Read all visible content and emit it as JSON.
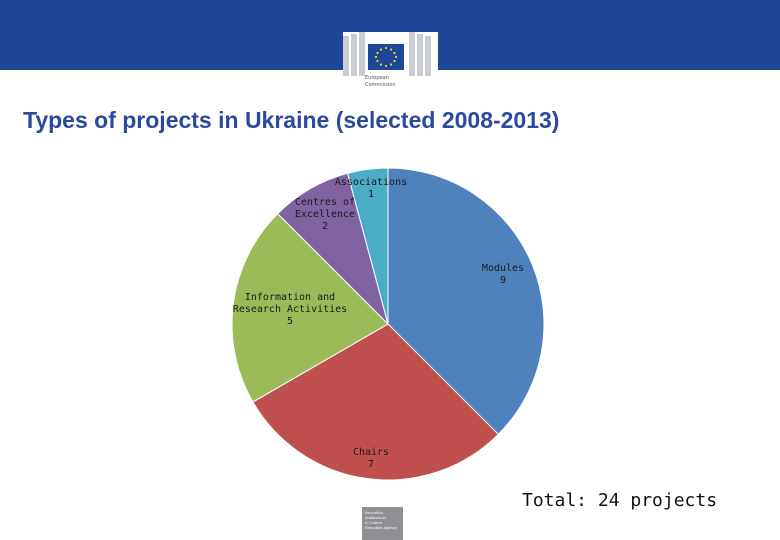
{
  "header": {
    "logo_text_line1": "European",
    "logo_text_line2": "Commission"
  },
  "slide_title": "Types of projects in Ukraine (selected 2008-2013)",
  "total_note": "Total: 24 projects",
  "footer_logo": {
    "text_lines": [
      "Education,",
      "Audiovisual",
      "& Culture",
      "Executive Agency"
    ]
  },
  "colors": {
    "header_band": "#1f4797",
    "title": "#2b4a9e",
    "Modules": "#4f81bd",
    "Chairs": "#c0504d",
    "Information and Research Activities": "#9bbb59",
    "Centres of Excellence": "#8064a2",
    "Associations": "#4bacc6"
  },
  "chart_data": {
    "type": "pie",
    "title": "",
    "start_angle": "12 o'clock",
    "direction": "clockwise",
    "slices": [
      {
        "name": "Modules",
        "value": 9,
        "label_lines": [
          "Modules",
          "9"
        ]
      },
      {
        "name": "Chairs",
        "value": 7,
        "label_lines": [
          "Chairs",
          "7"
        ]
      },
      {
        "name": "Information and Research Activities",
        "value": 5,
        "label_lines": [
          "Information and",
          "Research Activities",
          "5"
        ]
      },
      {
        "name": "Centres of Excellence",
        "value": 2,
        "label_lines": [
          "Centres of",
          "Excellence",
          "2"
        ]
      },
      {
        "name": "Associations",
        "value": 1,
        "label_lines": [
          "Associations",
          "1"
        ]
      }
    ],
    "legend": "none (labels on slices)"
  }
}
